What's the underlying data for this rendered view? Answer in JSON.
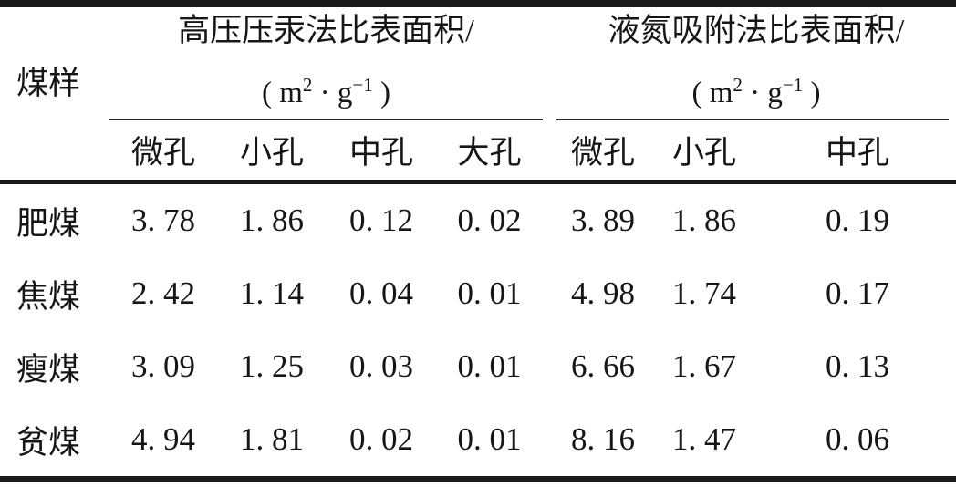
{
  "table": {
    "row_header": "煤样",
    "groups": [
      {
        "title": "高压压汞法比表面积/",
        "unit": {
          "pre": "( m",
          "sup1": "2",
          "mid": " · g",
          "sup2": "−1",
          "post": " )"
        },
        "subcols": [
          "微孔",
          "小孔",
          "中孔",
          "大孔"
        ]
      },
      {
        "title": "液氮吸附法比表面积/",
        "unit": {
          "pre": "( m",
          "sup1": "2",
          "mid": " · g",
          "sup2": "−1",
          "post": " )"
        },
        "subcols": [
          "微孔",
          "小孔",
          "中孔"
        ]
      }
    ],
    "rows": [
      {
        "label": "肥煤",
        "cells": [
          "3. 78",
          "1. 86",
          "0. 12",
          "0. 02",
          "3. 89",
          "1. 86",
          "0. 19"
        ]
      },
      {
        "label": "焦煤",
        "cells": [
          "2. 42",
          "1. 14",
          "0. 04",
          "0. 01",
          "4. 98",
          "1. 74",
          "0. 17"
        ]
      },
      {
        "label": "瘦煤",
        "cells": [
          "3. 09",
          "1. 25",
          "0. 03",
          "0. 01",
          "6. 66",
          "1. 67",
          "0. 13"
        ]
      },
      {
        "label": "贫煤",
        "cells": [
          "4. 94",
          "1. 81",
          "0. 02",
          "0. 01",
          "8. 16",
          "1. 47",
          "0. 06"
        ]
      }
    ]
  },
  "chart_data": {
    "type": "table",
    "row_header_label": "煤样",
    "column_groups": [
      {
        "title": "高压压汞法比表面积/(m2·g-1)",
        "columns": [
          "微孔",
          "小孔",
          "中孔",
          "大孔"
        ]
      },
      {
        "title": "液氮吸附法比表面积/(m2·g-1)",
        "columns": [
          "微孔",
          "小孔",
          "中孔"
        ]
      }
    ],
    "rows": [
      {
        "label": "肥煤",
        "mercury": [
          3.78,
          1.86,
          0.12,
          0.02
        ],
        "nitrogen": [
          3.89,
          1.86,
          0.19
        ]
      },
      {
        "label": "焦煤",
        "mercury": [
          2.42,
          1.14,
          0.04,
          0.01
        ],
        "nitrogen": [
          4.98,
          1.74,
          0.17
        ]
      },
      {
        "label": "瘦煤",
        "mercury": [
          3.09,
          1.25,
          0.03,
          0.01
        ],
        "nitrogen": [
          6.66,
          1.67,
          0.13
        ]
      },
      {
        "label": "贫煤",
        "mercury": [
          4.94,
          1.81,
          0.02,
          0.01
        ],
        "nitrogen": [
          8.16,
          1.47,
          0.06
        ]
      }
    ]
  }
}
